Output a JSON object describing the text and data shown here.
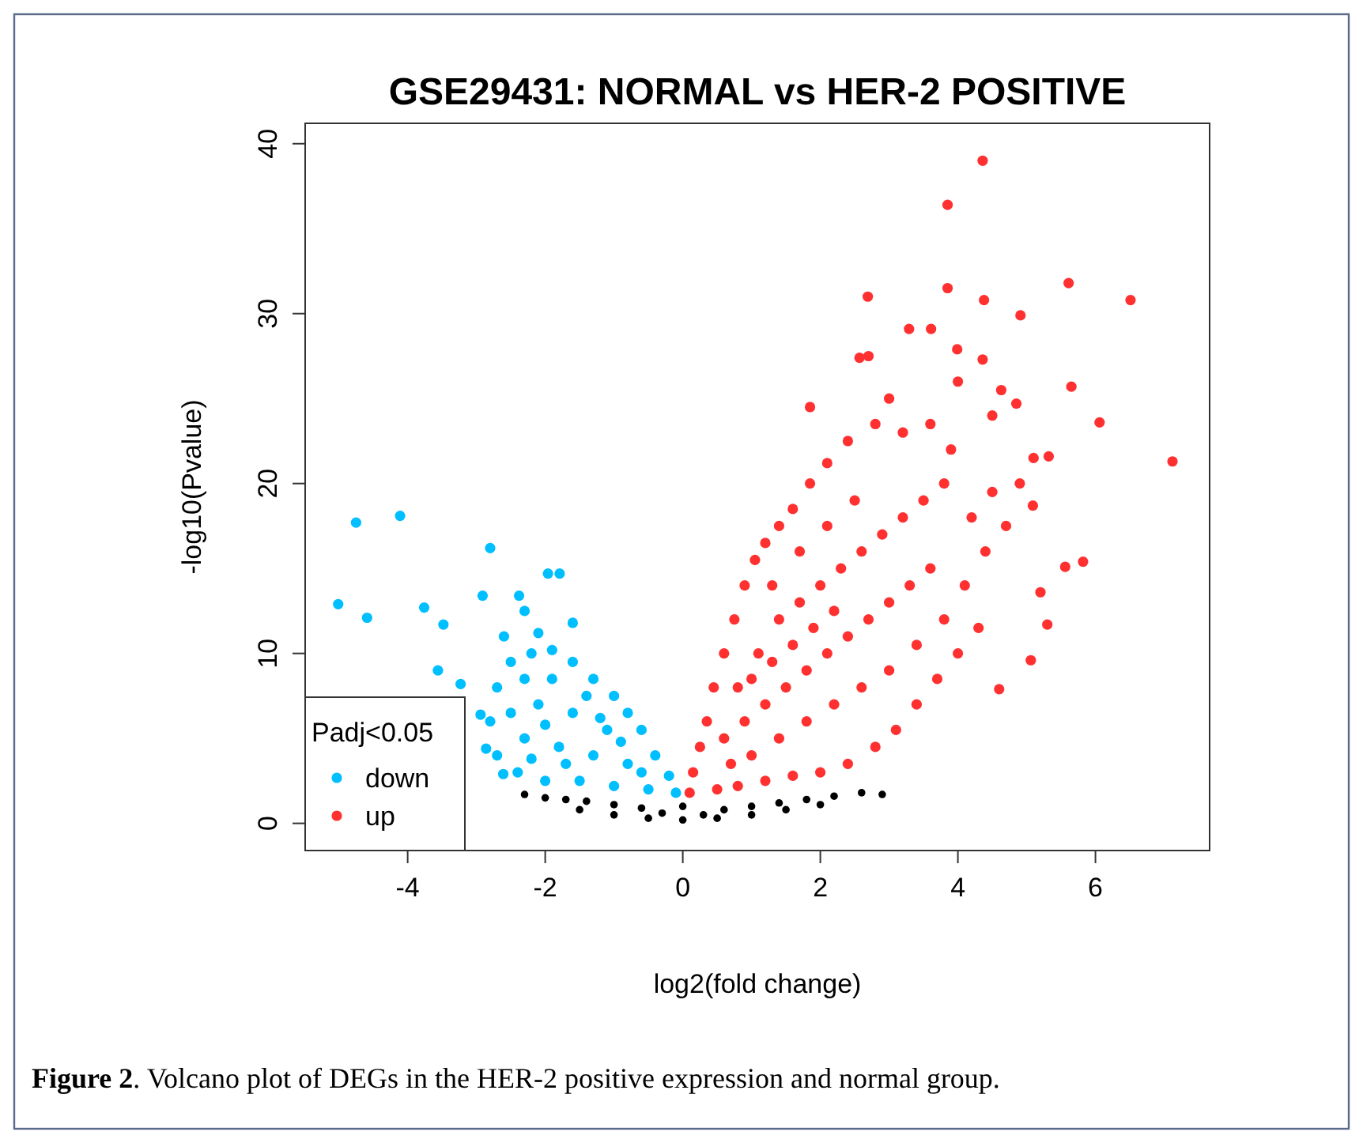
{
  "chart_data": {
    "type": "scatter",
    "title": "GSE29431: NORMAL vs HER-2 POSITIVE",
    "xlabel": "log2(fold change)",
    "ylabel": "-log10(Pvalue)",
    "legend_title": "Padj<0.05",
    "legend": "bottom left",
    "marker": "circle",
    "grid": false,
    "xlim": [
      -5.49,
      7.66
    ],
    "ylim": [
      -1.6,
      41.2
    ],
    "xticks": [
      -4,
      -2,
      0,
      2,
      4,
      6
    ],
    "yticks": [
      0,
      10,
      20,
      30,
      40
    ],
    "annotations": [
      "Figure 2. Volcano plot of DEGs in the HER-2 positive expression and normal group."
    ],
    "series": [
      {
        "color": "#000000",
        "x": [
          -2.3,
          -2.0,
          -1.7,
          -1.4,
          -1.0,
          -0.6,
          -0.3,
          0,
          0.3,
          0.6,
          1.0,
          1.4,
          1.8,
          2.2,
          2.6,
          2.9,
          -1.5,
          -1.0,
          -0.5,
          0.5,
          1.0,
          1.5,
          2.0,
          0
        ],
        "values": [
          1.7,
          1.5,
          1.4,
          1.3,
          1.1,
          0.9,
          0.6,
          0.2,
          0.5,
          0.8,
          1.0,
          1.2,
          1.4,
          1.6,
          1.8,
          1.7,
          0.8,
          0.5,
          0.3,
          0.3,
          0.5,
          0.8,
          1.1,
          1.0
        ]
      },
      {
        "name": "down",
        "color": "#00bfff",
        "x": [
          -4.75,
          -4.11,
          -5.01,
          -4.59,
          -2.8,
          -1.96,
          -1.79,
          -3.76,
          -3.48,
          -2.91,
          -2.38,
          -3.56,
          -3.23,
          -2.61,
          -2.86,
          -2.94,
          -0.1,
          -0.2,
          -0.4,
          -0.6,
          -0.8,
          -1.0,
          -1.3,
          -1.6,
          -1.9,
          -2.2,
          -2.5,
          -2.7,
          -2.8,
          -2.7,
          -0.5,
          -1.0,
          -1.5,
          -2.0,
          -2.4,
          -0.8,
          -1.3,
          -1.8,
          -2.3,
          -1.1,
          -1.6,
          -2.1,
          -1.4,
          -1.9,
          -2.3,
          -0.6,
          -1.7,
          -2.2,
          -1.2,
          -0.9,
          -2.5,
          -2.0,
          -2.1,
          -2.6,
          -1.6,
          -2.3
        ],
        "values": [
          17.7,
          18.1,
          12.9,
          12.1,
          16.2,
          14.7,
          14.7,
          12.7,
          11.7,
          13.4,
          13.4,
          9.0,
          8.2,
          2.9,
          4.4,
          6.4,
          1.8,
          2.8,
          4,
          5.5,
          6.5,
          7.5,
          8.5,
          9.5,
          10.2,
          10,
          9.5,
          8,
          6,
          4,
          2,
          2.2,
          2.5,
          2.5,
          3,
          3.5,
          4,
          4.5,
          5,
          5.5,
          6.5,
          7,
          7.5,
          8.5,
          8.5,
          3,
          3.5,
          3.8,
          6.2,
          4.8,
          6.5,
          5.8,
          11.2,
          11,
          11.8,
          12.5
        ]
      },
      {
        "name": "up",
        "color": "#ff3030",
        "x": [
          4.36,
          3.85,
          5.61,
          6.51,
          3.85,
          4.38,
          2.69,
          4.91,
          7.12,
          6.06,
          5.65,
          5.32,
          5.82,
          5.56,
          5.2,
          1.85,
          3.29,
          3.61,
          2.57,
          3.99,
          4.36,
          4.85,
          4.63,
          5.09,
          5.06,
          4.6,
          5.3,
          0.1,
          0.15,
          0.25,
          0.35,
          0.45,
          0.6,
          0.75,
          0.9,
          1.05,
          1.2,
          1.4,
          1.6,
          1.85,
          2.1,
          2.4,
          2.8,
          3.2,
          0.5,
          0.8,
          1.2,
          1.6,
          2.0,
          2.4,
          2.8,
          3.1,
          3.4,
          3.7,
          4.0,
          4.3,
          0.6,
          0.9,
          1.2,
          1.5,
          1.8,
          2.1,
          2.4,
          2.7,
          3.0,
          3.3,
          3.6,
          0.8,
          1.1,
          1.4,
          1.7,
          2.0,
          2.3,
          2.6,
          2.9,
          3.2,
          3.5,
          3.8,
          1.0,
          1.4,
          1.8,
          2.2,
          2.6,
          3.0,
          3.4,
          3.8,
          4.1,
          4.4,
          4.7,
          1.3,
          1.7,
          2.1,
          2.5,
          2.2,
          1.9,
          1.6,
          1.3,
          1.0,
          0.7,
          4.5,
          4.2,
          4.9,
          5.1,
          3.9,
          3.6,
          3.0,
          2.7,
          4.0,
          4.5
        ],
        "values": [
          39.0,
          36.4,
          31.8,
          30.8,
          31.5,
          30.8,
          31.0,
          29.9,
          21.3,
          23.6,
          25.7,
          21.6,
          15.4,
          15.1,
          13.6,
          24.5,
          29.1,
          29.1,
          27.4,
          27.9,
          27.3,
          24.7,
          25.5,
          18.7,
          9.6,
          7.9,
          11.7,
          1.8,
          3,
          4.5,
          6,
          8,
          10,
          12,
          14,
          15.5,
          16.5,
          17.5,
          18.5,
          20,
          21.2,
          22.5,
          23.5,
          23,
          2,
          2.2,
          2.5,
          2.8,
          3,
          3.5,
          4.5,
          5.5,
          7,
          8.5,
          10,
          11.5,
          5,
          6,
          7,
          8,
          9,
          10,
          11,
          12,
          13,
          14,
          15,
          8,
          10,
          12,
          13,
          14,
          15,
          16,
          17,
          18,
          19,
          20,
          4,
          5,
          6,
          7,
          8,
          9,
          10.5,
          12,
          14,
          16,
          17.5,
          14,
          16,
          17.5,
          19,
          12.5,
          11.5,
          10.5,
          9.5,
          8.5,
          3.5,
          19.5,
          18,
          20,
          21.5,
          22,
          23.5,
          25,
          27.5,
          26,
          24
        ]
      }
    ]
  }
}
